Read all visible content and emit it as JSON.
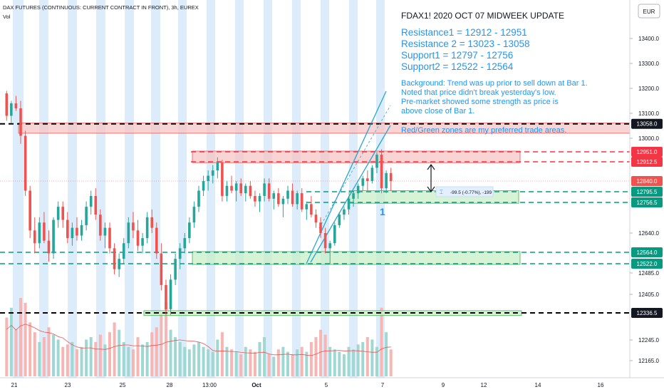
{
  "header": {
    "symbol_line": "DAX FUTURES (CONTINUOUS: CURRENT CONTRACT IN FRONT), 3h, EUREX",
    "volume_label": "Vol"
  },
  "currency_button": "EUR",
  "annotation": {
    "title": "FDAX1! 2020 OCT 07 MIDWEEK UPDATE",
    "levels": [
      "Resistance1 = 12912 - 12951",
      "Resistance 2 = 13023 - 13058",
      "Support1 = 12797 - 12756",
      "Support2 = 12522 - 12564"
    ],
    "background": [
      "Background: Trend was up prior to sell down at Bar 1.",
      "Noted that price didn't break yesterday's low.",
      "Pre-market showed some strength as price is",
      "above close of Bar 1."
    ],
    "zones_note": "Red/Green zones are my preferred trade areas.",
    "measure_label": "-99.5 (-0.77%), -199",
    "bar_marker": "1"
  },
  "colors": {
    "up": "#26a69a",
    "down": "#ef5350",
    "session_band": "#dcecfb",
    "annotation_text": "#2196f3",
    "channel": "#26a6d1",
    "resistance_zone": "#f7c6c6",
    "support_zone": "#c8efc8",
    "ma": "#ef5350"
  },
  "chart_data": {
    "type": "candlestick",
    "ylim": [
      12130,
      13460
    ],
    "y_ticks": [
      13400.0,
      13300.0,
      13200.0,
      13100.0,
      13000.0,
      12640.0,
      12485.0,
      12405.0,
      12245.0,
      12165.0
    ],
    "y_tick_labels": [
      "13400.0",
      "13300.0",
      "13200.0",
      "13100.0",
      "13000.0",
      "12640.0",
      "12485.0",
      "12405.0",
      "12245.0",
      "12165.0"
    ],
    "x_tick_labels": [
      "21",
      "23",
      "25",
      "28",
      "13:00",
      "Oct",
      "5",
      "7",
      "9",
      "12",
      "14",
      "16"
    ],
    "horizontal_levels": [
      {
        "price": 13058.0,
        "label": "13058.0",
        "color": "#000000",
        "kind": "resistance2"
      },
      {
        "price": 12951.0,
        "label": "12951.0",
        "color": "#f23645",
        "kind": "resistance1"
      },
      {
        "price": 12912.5,
        "label": "12912.5",
        "color": "#f23645",
        "kind": "resistance1"
      },
      {
        "price": 12795.5,
        "label": "12795.5",
        "color": "#089981",
        "kind": "support1"
      },
      {
        "price": 12756.5,
        "label": "12756.5",
        "color": "#089981",
        "kind": "support1"
      },
      {
        "price": 12564.0,
        "label": "12564.0",
        "color": "#089981",
        "kind": "support2"
      },
      {
        "price": 12522.0,
        "label": "12522.0",
        "color": "#089981",
        "kind": "support2"
      },
      {
        "price": 12336.5,
        "label": "12336.5",
        "color": "#000000",
        "kind": "support3"
      }
    ],
    "current_price": {
      "price": 12840.0,
      "label": "12840.0"
    },
    "zones": [
      {
        "name": "resistance2",
        "from": 13023,
        "to": 13058,
        "kind": "red"
      },
      {
        "name": "resistance1",
        "from": 12912,
        "to": 12951,
        "kind": "red"
      },
      {
        "name": "support1",
        "from": 12756,
        "to": 12797,
        "kind": "green"
      },
      {
        "name": "support2",
        "from": 12522,
        "to": 12564,
        "kind": "green"
      },
      {
        "name": "support3",
        "from": 12330,
        "to": 12342,
        "kind": "green"
      }
    ],
    "candles": [
      [
        13180,
        13190,
        13070,
        13090
      ],
      [
        13090,
        13150,
        13060,
        13140
      ],
      [
        13140,
        13170,
        13110,
        13120
      ],
      [
        13120,
        13150,
        12980,
        13010
      ],
      [
        13010,
        13030,
        12780,
        12800
      ],
      [
        12800,
        12820,
        12620,
        12650
      ],
      [
        12650,
        12700,
        12560,
        12600
      ],
      [
        12600,
        12700,
        12580,
        12680
      ],
      [
        12680,
        12720,
        12600,
        12610
      ],
      [
        12610,
        12650,
        12530,
        12560
      ],
      [
        12560,
        12700,
        12540,
        12690
      ],
      [
        12690,
        12760,
        12660,
        12740
      ],
      [
        12740,
        12760,
        12660,
        12690
      ],
      [
        12690,
        12720,
        12600,
        12620
      ],
      [
        12620,
        12680,
        12590,
        12660
      ],
      [
        12660,
        12700,
        12610,
        12630
      ],
      [
        12630,
        12690,
        12610,
        12670
      ],
      [
        12670,
        12760,
        12650,
        12740
      ],
      [
        12740,
        12800,
        12710,
        12780
      ],
      [
        12780,
        12810,
        12690,
        12710
      ],
      [
        12710,
        12730,
        12610,
        12630
      ],
      [
        12630,
        12680,
        12580,
        12660
      ],
      [
        12660,
        12680,
        12560,
        12580
      ],
      [
        12580,
        12600,
        12480,
        12500
      ],
      [
        12500,
        12560,
        12470,
        12540
      ],
      [
        12540,
        12620,
        12520,
        12600
      ],
      [
        12600,
        12700,
        12580,
        12680
      ],
      [
        12680,
        12720,
        12620,
        12650
      ],
      [
        12650,
        12690,
        12570,
        12590
      ],
      [
        12590,
        12640,
        12560,
        12620
      ],
      [
        12620,
        12720,
        12600,
        12700
      ],
      [
        12700,
        12730,
        12640,
        12660
      ],
      [
        12660,
        12680,
        12540,
        12560
      ],
      [
        12560,
        12600,
        12420,
        12440
      ],
      [
        12440,
        12460,
        12330,
        12350
      ],
      [
        12350,
        12480,
        12330,
        12460
      ],
      [
        12460,
        12560,
        12440,
        12540
      ],
      [
        12540,
        12600,
        12500,
        12580
      ],
      [
        12580,
        12640,
        12560,
        12620
      ],
      [
        12620,
        12700,
        12600,
        12680
      ],
      [
        12680,
        12760,
        12660,
        12740
      ],
      [
        12740,
        12820,
        12720,
        12800
      ],
      [
        12800,
        12860,
        12780,
        12840
      ],
      [
        12840,
        12880,
        12800,
        12860
      ],
      [
        12860,
        12900,
        12830,
        12880
      ],
      [
        12880,
        12930,
        12850,
        12910
      ],
      [
        12910,
        12920,
        12760,
        12780
      ],
      [
        12780,
        12840,
        12760,
        12820
      ],
      [
        12820,
        12860,
        12790,
        12800
      ],
      [
        12800,
        12840,
        12760,
        12830
      ],
      [
        12830,
        12850,
        12780,
        12790
      ],
      [
        12790,
        12830,
        12760,
        12820
      ],
      [
        12820,
        12840,
        12770,
        12780
      ],
      [
        12780,
        12800,
        12740,
        12760
      ],
      [
        12760,
        12790,
        12720,
        12780
      ],
      [
        12780,
        12850,
        12760,
        12830
      ],
      [
        12830,
        12850,
        12760,
        12770
      ],
      [
        12770,
        12800,
        12730,
        12790
      ],
      [
        12790,
        12810,
        12740,
        12750
      ],
      [
        12750,
        12780,
        12700,
        12770
      ],
      [
        12770,
        12820,
        12750,
        12800
      ],
      [
        12800,
        12830,
        12740,
        12750
      ],
      [
        12750,
        12800,
        12730,
        12790
      ],
      [
        12790,
        12810,
        12720,
        12730
      ],
      [
        12730,
        12760,
        12690,
        12750
      ],
      [
        12750,
        12780,
        12700,
        12710
      ],
      [
        12710,
        12730,
        12660,
        12680
      ],
      [
        12680,
        12700,
        12620,
        12640
      ],
      [
        12640,
        12660,
        12560,
        12580
      ],
      [
        12580,
        12610,
        12520,
        12600
      ],
      [
        12600,
        12680,
        12590,
        12670
      ],
      [
        12670,
        12720,
        12660,
        12710
      ],
      [
        12710,
        12740,
        12690,
        12730
      ],
      [
        12730,
        12780,
        12710,
        12770
      ],
      [
        12770,
        12800,
        12740,
        12790
      ],
      [
        12790,
        12830,
        12770,
        12820
      ],
      [
        12820,
        12860,
        12800,
        12850
      ],
      [
        12850,
        12880,
        12800,
        12840
      ],
      [
        12840,
        12900,
        12830,
        12890
      ],
      [
        12890,
        12950,
        12870,
        12940
      ],
      [
        12940,
        12960,
        12790,
        12810
      ],
      [
        12810,
        12880,
        12790,
        12870
      ],
      [
        12870,
        12890,
        12800,
        12840
      ]
    ],
    "volume": [
      120,
      140,
      95,
      160,
      150,
      110,
      90,
      70,
      80,
      100,
      85,
      75,
      60,
      65,
      70,
      55,
      60,
      75,
      80,
      70,
      85,
      65,
      90,
      110,
      95,
      70,
      60,
      55,
      80,
      65,
      70,
      90,
      100,
      130,
      150,
      95,
      80,
      70,
      60,
      55,
      65,
      70,
      60,
      55,
      50,
      75,
      90,
      60,
      55,
      50,
      45,
      60,
      55,
      50,
      70,
      80,
      45,
      40,
      55,
      60,
      50,
      45,
      55,
      60,
      50,
      70,
      80,
      95,
      85,
      60,
      55,
      50,
      45,
      60,
      55,
      65,
      70,
      80,
      75,
      60,
      140,
      90,
      55
    ],
    "moving_average_type": "volume MA"
  }
}
